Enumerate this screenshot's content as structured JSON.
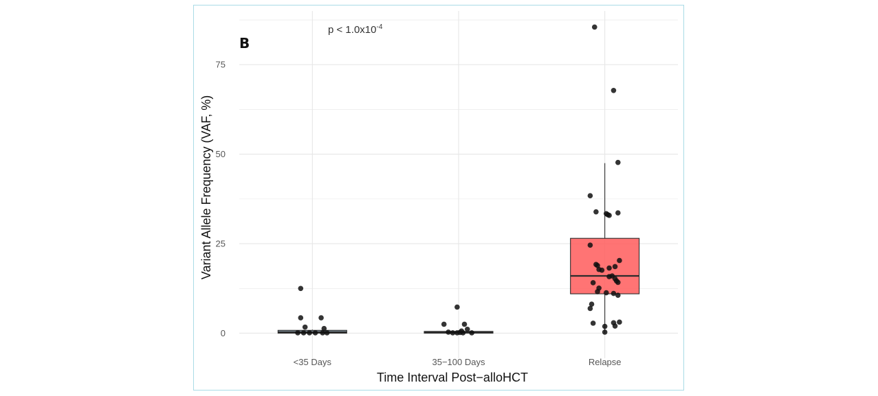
{
  "panel_label": "B",
  "annotation": {
    "text": "p < 1.0x10",
    "exponent": "-4"
  },
  "colors": {
    "grid": "#e6e6e6",
    "box_low": "#7a8fa0",
    "box_relapse": "#ff5c5c",
    "box_stroke": "#2b2b2b",
    "point": "#111111",
    "frame": "#a9dbe6"
  },
  "chart_data": {
    "type": "box",
    "xlabel": "Time Interval Post−alloHCT",
    "ylabel": "Variant Allele Frequency (VAF, %)",
    "ylim": [
      -7,
      90
    ],
    "yticks": [
      0,
      25,
      50,
      75
    ],
    "ytick_labels": [
      "0",
      "25",
      "50",
      "75"
    ],
    "grid": true,
    "categories": [
      "<35 Days",
      "35−100 Days",
      "Relapse"
    ],
    "boxes": [
      {
        "category": "<35 Days",
        "q1": 0,
        "median": 0.3,
        "q3": 0.8,
        "whisker_low": 0,
        "whisker_high": 1
      },
      {
        "category": "35−100 Days",
        "q1": 0,
        "median": 0.2,
        "q3": 0.5,
        "whisker_low": 0,
        "whisker_high": 0.8
      },
      {
        "category": "Relapse",
        "q1": 11,
        "median": 16,
        "q3": 26.5,
        "whisker_low": 0,
        "whisker_high": 47.5
      }
    ],
    "points": [
      {
        "category": "<35 Days",
        "x_offset": -0.08,
        "y": 12.5
      },
      {
        "category": "<35 Days",
        "x_offset": -0.08,
        "y": 4.3
      },
      {
        "category": "<35 Days",
        "x_offset": 0.06,
        "y": 4.3
      },
      {
        "category": "<35 Days",
        "x_offset": -0.05,
        "y": 1.7
      },
      {
        "category": "<35 Days",
        "x_offset": 0.08,
        "y": 1.3
      },
      {
        "category": "<35 Days",
        "x_offset": -0.1,
        "y": 0.1
      },
      {
        "category": "<35 Days",
        "x_offset": -0.06,
        "y": 0.1
      },
      {
        "category": "<35 Days",
        "x_offset": -0.02,
        "y": 0.1
      },
      {
        "category": "<35 Days",
        "x_offset": 0.02,
        "y": 0.1
      },
      {
        "category": "<35 Days",
        "x_offset": 0.07,
        "y": 0.1
      },
      {
        "category": "<35 Days",
        "x_offset": 0.1,
        "y": 0.1
      },
      {
        "category": "35−100 Days",
        "x_offset": -0.01,
        "y": 7.3
      },
      {
        "category": "35−100 Days",
        "x_offset": -0.1,
        "y": 2.5
      },
      {
        "category": "35−100 Days",
        "x_offset": 0.04,
        "y": 2.5
      },
      {
        "category": "35−100 Days",
        "x_offset": 0.06,
        "y": 1.1
      },
      {
        "category": "35−100 Days",
        "x_offset": 0.02,
        "y": 0.6
      },
      {
        "category": "35−100 Days",
        "x_offset": -0.07,
        "y": 0.3
      },
      {
        "category": "35−100 Days",
        "x_offset": -0.04,
        "y": 0.1
      },
      {
        "category": "35−100 Days",
        "x_offset": -0.01,
        "y": 0.1
      },
      {
        "category": "35−100 Days",
        "x_offset": 0.03,
        "y": 0.1
      },
      {
        "category": "35−100 Days",
        "x_offset": 0.09,
        "y": 0.1
      },
      {
        "category": "35−100 Days",
        "x_offset": 0.01,
        "y": 0.2
      },
      {
        "category": "Relapse",
        "x_offset": -0.07,
        "y": 85.5
      },
      {
        "category": "Relapse",
        "x_offset": 0.06,
        "y": 67.8
      },
      {
        "category": "Relapse",
        "x_offset": 0.09,
        "y": 47.7
      },
      {
        "category": "Relapse",
        "x_offset": -0.1,
        "y": 38.4
      },
      {
        "category": "Relapse",
        "x_offset": -0.06,
        "y": 33.9
      },
      {
        "category": "Relapse",
        "x_offset": 0.01,
        "y": 33.4
      },
      {
        "category": "Relapse",
        "x_offset": 0.02,
        "y": 33.1
      },
      {
        "category": "Relapse",
        "x_offset": 0.03,
        "y": 32.9
      },
      {
        "category": "Relapse",
        "x_offset": 0.09,
        "y": 33.6
      },
      {
        "category": "Relapse",
        "x_offset": -0.1,
        "y": 24.6
      },
      {
        "category": "Relapse",
        "x_offset": 0.1,
        "y": 20.3
      },
      {
        "category": "Relapse",
        "x_offset": -0.06,
        "y": 19.2
      },
      {
        "category": "Relapse",
        "x_offset": -0.05,
        "y": 18.9
      },
      {
        "category": "Relapse",
        "x_offset": 0.07,
        "y": 18.6
      },
      {
        "category": "Relapse",
        "x_offset": -0.04,
        "y": 17.8
      },
      {
        "category": "Relapse",
        "x_offset": -0.02,
        "y": 17.6
      },
      {
        "category": "Relapse",
        "x_offset": 0.03,
        "y": 18.2
      },
      {
        "category": "Relapse",
        "x_offset": 0.05,
        "y": 16.0
      },
      {
        "category": "Relapse",
        "x_offset": 0.03,
        "y": 15.8
      },
      {
        "category": "Relapse",
        "x_offset": 0.07,
        "y": 15.2
      },
      {
        "category": "Relapse",
        "x_offset": 0.08,
        "y": 14.6
      },
      {
        "category": "Relapse",
        "x_offset": 0.09,
        "y": 14.2
      },
      {
        "category": "Relapse",
        "x_offset": -0.08,
        "y": 14.1
      },
      {
        "category": "Relapse",
        "x_offset": -0.04,
        "y": 12.6
      },
      {
        "category": "Relapse",
        "x_offset": -0.05,
        "y": 11.6
      },
      {
        "category": "Relapse",
        "x_offset": 0.01,
        "y": 11.3
      },
      {
        "category": "Relapse",
        "x_offset": 0.06,
        "y": 11.1
      },
      {
        "category": "Relapse",
        "x_offset": 0.09,
        "y": 10.6
      },
      {
        "category": "Relapse",
        "x_offset": -0.09,
        "y": 8.1
      },
      {
        "category": "Relapse",
        "x_offset": -0.1,
        "y": 6.9
      },
      {
        "category": "Relapse",
        "x_offset": -0.08,
        "y": 2.8
      },
      {
        "category": "Relapse",
        "x_offset": 0.06,
        "y": 2.9
      },
      {
        "category": "Relapse",
        "x_offset": 0.1,
        "y": 3.1
      },
      {
        "category": "Relapse",
        "x_offset": 0.07,
        "y": 2.0
      },
      {
        "category": "Relapse",
        "x_offset": 0.0,
        "y": 1.9
      },
      {
        "category": "Relapse",
        "x_offset": 0.0,
        "y": 0.3
      }
    ]
  }
}
